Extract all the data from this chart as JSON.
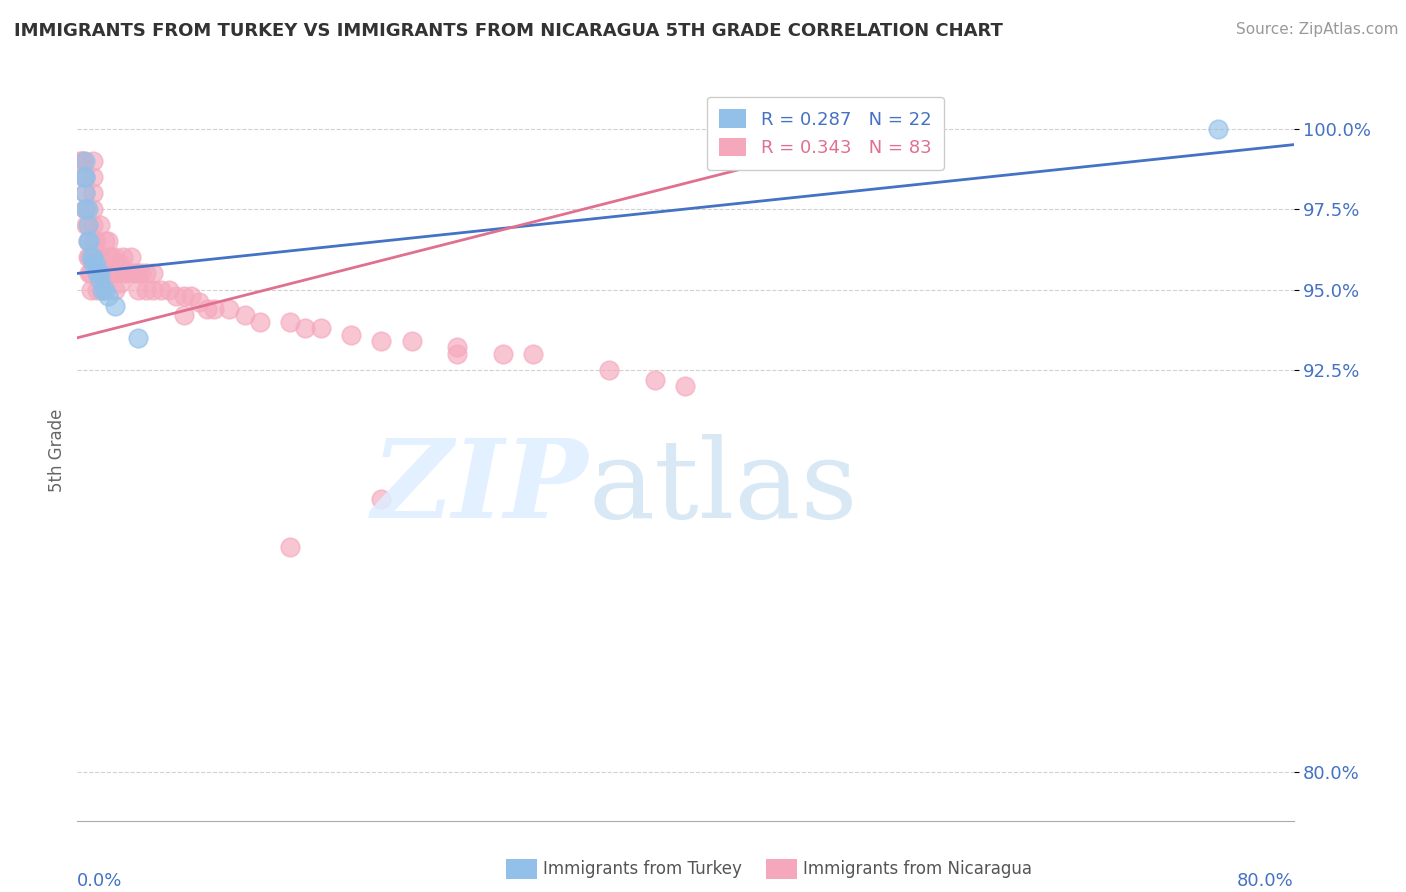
{
  "title": "IMMIGRANTS FROM TURKEY VS IMMIGRANTS FROM NICARAGUA 5TH GRADE CORRELATION CHART",
  "source": "Source: ZipAtlas.com",
  "ylabel": "5th Grade",
  "ytick_labels": [
    "100.0%",
    "97.5%",
    "95.0%",
    "92.5%",
    "80.0%"
  ],
  "ytick_values": [
    1.0,
    0.975,
    0.95,
    0.925,
    0.8
  ],
  "xlim": [
    0.0,
    0.8
  ],
  "ylim": [
    0.785,
    1.015
  ],
  "legend_turkey": "R = 0.287   N = 22",
  "legend_nicaragua": "R = 0.343   N = 83",
  "turkey_color": "#92C0E8",
  "nicaragua_color": "#F5A8BC",
  "turkey_line_color": "#4472C4",
  "nicaragua_line_color": "#E07090",
  "background_color": "#ffffff",
  "turkey_scatter_x": [
    0.005,
    0.005,
    0.005,
    0.005,
    0.005,
    0.007,
    0.007,
    0.007,
    0.008,
    0.009,
    0.01,
    0.01,
    0.012,
    0.013,
    0.015,
    0.015,
    0.016,
    0.018,
    0.02,
    0.025,
    0.04,
    0.75
  ],
  "turkey_scatter_y": [
    0.99,
    0.985,
    0.985,
    0.98,
    0.975,
    0.975,
    0.97,
    0.965,
    0.965,
    0.96,
    0.96,
    0.958,
    0.958,
    0.955,
    0.955,
    0.953,
    0.95,
    0.95,
    0.948,
    0.945,
    0.935,
    1.0
  ],
  "nicaragua_scatter_x": [
    0.002,
    0.003,
    0.004,
    0.004,
    0.005,
    0.005,
    0.005,
    0.006,
    0.006,
    0.007,
    0.007,
    0.007,
    0.008,
    0.008,
    0.009,
    0.009,
    0.01,
    0.01,
    0.01,
    0.01,
    0.01,
    0.011,
    0.011,
    0.012,
    0.012,
    0.013,
    0.013,
    0.014,
    0.015,
    0.015,
    0.016,
    0.016,
    0.018,
    0.018,
    0.02,
    0.02,
    0.022,
    0.022,
    0.025,
    0.025,
    0.025,
    0.028,
    0.028,
    0.03,
    0.03,
    0.032,
    0.035,
    0.035,
    0.038,
    0.04,
    0.04,
    0.042,
    0.045,
    0.045,
    0.05,
    0.05,
    0.055,
    0.06,
    0.065,
    0.07,
    0.07,
    0.075,
    0.08,
    0.085,
    0.09,
    0.1,
    0.11,
    0.12,
    0.14,
    0.15,
    0.16,
    0.18,
    0.2,
    0.22,
    0.25,
    0.28,
    0.3,
    0.35,
    0.38,
    0.4,
    0.14,
    0.2,
    0.25
  ],
  "nicaragua_scatter_y": [
    0.99,
    0.99,
    0.99,
    0.985,
    0.985,
    0.98,
    0.975,
    0.975,
    0.97,
    0.97,
    0.965,
    0.96,
    0.96,
    0.955,
    0.955,
    0.95,
    0.99,
    0.985,
    0.98,
    0.975,
    0.97,
    0.965,
    0.96,
    0.965,
    0.96,
    0.955,
    0.95,
    0.955,
    0.97,
    0.96,
    0.955,
    0.95,
    0.965,
    0.955,
    0.965,
    0.96,
    0.96,
    0.955,
    0.96,
    0.955,
    0.95,
    0.958,
    0.952,
    0.96,
    0.955,
    0.955,
    0.96,
    0.955,
    0.955,
    0.955,
    0.95,
    0.955,
    0.955,
    0.95,
    0.955,
    0.95,
    0.95,
    0.95,
    0.948,
    0.948,
    0.942,
    0.948,
    0.946,
    0.944,
    0.944,
    0.944,
    0.942,
    0.94,
    0.94,
    0.938,
    0.938,
    0.936,
    0.934,
    0.934,
    0.932,
    0.93,
    0.93,
    0.925,
    0.922,
    0.92,
    0.87,
    0.885,
    0.93
  ],
  "turkey_line_x": [
    0.0,
    0.8
  ],
  "turkey_line_y": [
    0.955,
    0.995
  ],
  "nicaragua_line_x": [
    0.0,
    0.5
  ],
  "nicaragua_line_y": [
    0.935,
    0.995
  ]
}
